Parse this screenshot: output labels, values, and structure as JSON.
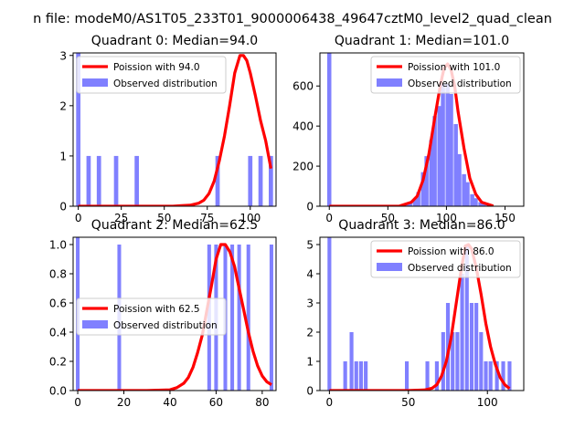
{
  "figure": {
    "suptitle": "n file: modeM0/AS1T05_233T01_9000006438_49647cztM0_level2_quad_clean",
    "colors": {
      "poisson_line": "#ff0000",
      "histogram": "#8080ff",
      "axes": "#000000",
      "background": "#ffffff"
    }
  },
  "chart_data": [
    {
      "type": "bar+line",
      "title": "Quadrant 0: Median=94.0",
      "xlim": [
        -3,
        115
      ],
      "ylim": [
        0,
        3.05
      ],
      "xticks": [
        0,
        25,
        50,
        75,
        100
      ],
      "yticks": [
        0,
        1,
        2,
        3
      ],
      "legend": {
        "placement": "upper-left",
        "entries": [
          "Poission with 94.0",
          "Observed distribution"
        ]
      },
      "hist_bin_width": 2.5,
      "histogram": [
        {
          "x": 0,
          "y": 3.05
        },
        {
          "x": 6,
          "y": 1
        },
        {
          "x": 12,
          "y": 1
        },
        {
          "x": 22,
          "y": 1
        },
        {
          "x": 34,
          "y": 1
        },
        {
          "x": 81,
          "y": 1
        },
        {
          "x": 100,
          "y": 1
        },
        {
          "x": 106,
          "y": 1
        },
        {
          "x": 112,
          "y": 1
        }
      ],
      "poisson": {
        "x": [
          0,
          55,
          60,
          65,
          70,
          73,
          76,
          79,
          82,
          85,
          88,
          91,
          94,
          96,
          98,
          100,
          103,
          106,
          109,
          112
        ],
        "y": [
          0,
          0,
          0.01,
          0.02,
          0.06,
          0.12,
          0.25,
          0.5,
          0.9,
          1.4,
          2.0,
          2.65,
          3.0,
          3.0,
          2.9,
          2.65,
          2.2,
          1.7,
          1.3,
          0.75
        ]
      }
    },
    {
      "type": "bar+line",
      "title": "Quadrant 1: Median=101.0",
      "xlim": [
        -8,
        166
      ],
      "ylim": [
        0,
        765
      ],
      "xticks": [
        0,
        50,
        100,
        150
      ],
      "yticks": [
        0,
        200,
        400,
        600
      ],
      "legend": {
        "placement": "upper-right",
        "entries": [
          "Poission with 101.0",
          "Observed distribution"
        ]
      },
      "hist_bin_width": 3.5,
      "histogram": [
        {
          "x": 0,
          "y": 765
        },
        {
          "x": 55,
          "y": 3
        },
        {
          "x": 59,
          "y": 5
        },
        {
          "x": 62,
          "y": 8
        },
        {
          "x": 66,
          "y": 12
        },
        {
          "x": 69,
          "y": 20
        },
        {
          "x": 73,
          "y": 35
        },
        {
          "x": 76,
          "y": 70
        },
        {
          "x": 80,
          "y": 170
        },
        {
          "x": 83,
          "y": 250
        },
        {
          "x": 87,
          "y": 330
        },
        {
          "x": 90,
          "y": 450
        },
        {
          "x": 94,
          "y": 500
        },
        {
          "x": 97,
          "y": 610
        },
        {
          "x": 101,
          "y": 610
        },
        {
          "x": 104,
          "y": 560
        },
        {
          "x": 108,
          "y": 410
        },
        {
          "x": 111,
          "y": 260
        },
        {
          "x": 115,
          "y": 160
        },
        {
          "x": 118,
          "y": 120
        },
        {
          "x": 122,
          "y": 60
        },
        {
          "x": 125,
          "y": 40
        },
        {
          "x": 129,
          "y": 20
        },
        {
          "x": 132,
          "y": 12
        },
        {
          "x": 136,
          "y": 6
        }
      ],
      "poisson": {
        "x": [
          0,
          60,
          70,
          75,
          80,
          85,
          90,
          95,
          98,
          101,
          104,
          107,
          110,
          115,
          120,
          125,
          130,
          140
        ],
        "y": [
          0,
          1,
          20,
          50,
          130,
          260,
          440,
          610,
          690,
          710,
          680,
          600,
          470,
          290,
          140,
          60,
          20,
          1
        ]
      }
    },
    {
      "type": "bar+line",
      "title": "Quadrant 2: Median=62.5",
      "xlim": [
        -2,
        86
      ],
      "ylim": [
        0,
        1.05
      ],
      "xticks": [
        0,
        20,
        40,
        60,
        80
      ],
      "yticks": [
        0,
        0.2,
        0.4,
        0.6,
        0.8,
        1.0
      ],
      "legend": {
        "placement": "center-left",
        "entries": [
          "Poission with 62.5",
          "Observed distribution"
        ]
      },
      "hist_bin_width": 1.6,
      "histogram": [
        {
          "x": 0,
          "y": 1.05
        },
        {
          "x": 18,
          "y": 1
        },
        {
          "x": 57,
          "y": 1
        },
        {
          "x": 60,
          "y": 1
        },
        {
          "x": 64,
          "y": 1
        },
        {
          "x": 67,
          "y": 1
        },
        {
          "x": 70,
          "y": 1
        },
        {
          "x": 74,
          "y": 1
        },
        {
          "x": 84,
          "y": 1
        }
      ],
      "poisson": {
        "x": [
          0,
          30,
          40,
          43,
          46,
          48,
          50,
          52,
          54,
          56,
          58,
          60,
          62,
          64,
          66,
          68,
          70,
          72,
          74,
          76,
          78,
          80,
          82,
          84
        ],
        "y": [
          0,
          0,
          0.005,
          0.02,
          0.05,
          0.09,
          0.16,
          0.26,
          0.38,
          0.55,
          0.72,
          0.9,
          1.0,
          1.0,
          0.95,
          0.85,
          0.7,
          0.55,
          0.4,
          0.27,
          0.17,
          0.1,
          0.06,
          0.04
        ]
      }
    },
    {
      "type": "bar+line",
      "title": "Quadrant 3: Median=86.0",
      "xlim": [
        -6,
        123
      ],
      "ylim": [
        0,
        5.25
      ],
      "xticks": [
        0,
        50,
        100
      ],
      "yticks": [
        0,
        1,
        2,
        3,
        4,
        5
      ],
      "legend": {
        "placement": "upper-right",
        "entries": [
          "Poission with 86.0",
          "Observed distribution"
        ]
      },
      "hist_bin_width": 2.4,
      "histogram": [
        {
          "x": 0,
          "y": 5.25
        },
        {
          "x": 10,
          "y": 1
        },
        {
          "x": 14,
          "y": 2
        },
        {
          "x": 17,
          "y": 1
        },
        {
          "x": 20,
          "y": 1
        },
        {
          "x": 23,
          "y": 1
        },
        {
          "x": 49,
          "y": 1
        },
        {
          "x": 62,
          "y": 1
        },
        {
          "x": 68,
          "y": 1
        },
        {
          "x": 72,
          "y": 2
        },
        {
          "x": 75,
          "y": 3
        },
        {
          "x": 78,
          "y": 2
        },
        {
          "x": 81,
          "y": 2
        },
        {
          "x": 84,
          "y": 4
        },
        {
          "x": 87,
          "y": 5
        },
        {
          "x": 90,
          "y": 3
        },
        {
          "x": 93,
          "y": 3
        },
        {
          "x": 96,
          "y": 2
        },
        {
          "x": 99,
          "y": 1
        },
        {
          "x": 102,
          "y": 1
        },
        {
          "x": 106,
          "y": 1
        },
        {
          "x": 110,
          "y": 1
        },
        {
          "x": 114,
          "y": 1
        }
      ],
      "poisson": {
        "x": [
          0,
          50,
          60,
          65,
          68,
          71,
          74,
          77,
          80,
          83,
          86,
          88,
          90,
          93,
          96,
          99,
          102,
          105,
          108,
          111,
          114
        ],
        "y": [
          0,
          0,
          0.02,
          0.08,
          0.2,
          0.5,
          1.0,
          1.8,
          2.9,
          4.0,
          4.95,
          5.0,
          4.85,
          4.2,
          3.3,
          2.3,
          1.5,
          0.9,
          0.45,
          0.2,
          0.07
        ]
      }
    }
  ]
}
